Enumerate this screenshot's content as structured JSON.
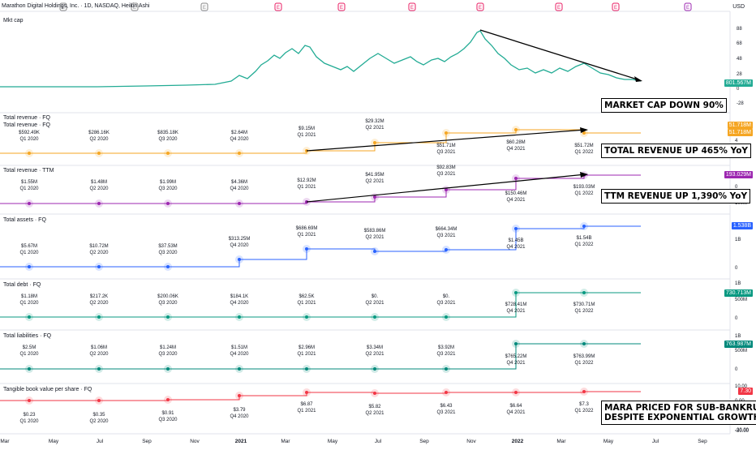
{
  "header": {
    "title": "Marathon Digital Holdings, Inc. · 1D, NASDAQ, Heikin Ashi",
    "currency": "USD",
    "events": [
      {
        "x": 78,
        "label": "E",
        "color": "#888888"
      },
      {
        "x": 166,
        "label": "E",
        "color": "#888888"
      },
      {
        "x": 252,
        "label": "E",
        "color": "#888888"
      },
      {
        "x": 343,
        "label": "E",
        "color": "#e91e63"
      },
      {
        "x": 421,
        "label": "E",
        "color": "#e91e63"
      },
      {
        "x": 508,
        "label": "E",
        "color": "#e91e63"
      },
      {
        "x": 592,
        "label": "E",
        "color": "#e91e63"
      },
      {
        "x": 689,
        "label": "E",
        "color": "#e91e63"
      },
      {
        "x": 759,
        "label": "E",
        "color": "#e91e63"
      },
      {
        "x": 848,
        "label": "E",
        "color": "#9c27b0"
      }
    ]
  },
  "x_axis": [
    "Mar",
    "May",
    "Jul",
    "Sep",
    "Nov",
    "2021",
    "Mar",
    "May",
    "Jul",
    "Sep",
    "Nov",
    "2022",
    "Mar",
    "May",
    "Jul",
    "Sep"
  ],
  "panes": {
    "mktcap": {
      "title": "Mkt cap",
      "axis": [
        "88",
        "68",
        "48",
        "28",
        "0",
        "-28"
      ],
      "last_value": "801.567M",
      "color": "#22ab94",
      "annotation": "MARKET CAP DOWN 90%"
    },
    "rev_fq": {
      "titles": [
        "Total revenue · FQ",
        "Total revenue · FQ"
      ],
      "points": [
        {
          "value": "$592.49K",
          "period": "Q1 2020"
        },
        {
          "value": "$286.16K",
          "period": "Q2 2020"
        },
        {
          "value": "$835.18K",
          "period": "Q3 2020"
        },
        {
          "value": "$2.64M",
          "period": "Q4 2020"
        },
        {
          "value": "$9.15M",
          "period": "Q1 2021"
        },
        {
          "value": "$29.32M",
          "period": "Q2 2021"
        },
        {
          "value": "$51.71M",
          "period": "Q3 2021"
        },
        {
          "value": "$60.28M",
          "period": "Q4 2021"
        },
        {
          "value": "$51.72M",
          "period": "Q1 2022"
        }
      ],
      "axis": [
        "0",
        "4"
      ],
      "tags": [
        "51.718M",
        "51.718M"
      ],
      "color": "#f5a623",
      "annotation": "TOTAL REVENUE UP 465% YoY"
    },
    "rev_ttm": {
      "title": "Total revenue · TTM",
      "points": [
        {
          "value": "$1.55M",
          "period": "Q1 2020"
        },
        {
          "value": "$1.48M",
          "period": "Q2 2020"
        },
        {
          "value": "$1.99M",
          "period": "Q3 2020"
        },
        {
          "value": "$4.36M",
          "period": "Q4 2020"
        },
        {
          "value": "$12.92M",
          "period": "Q1 2021"
        },
        {
          "value": "$41.95M",
          "period": "Q2 2021"
        },
        {
          "value": "$92.83M",
          "period": "Q3 2021"
        },
        {
          "value": "$150.46M",
          "period": "Q4 2021"
        },
        {
          "value": "$193.03M",
          "period": "Q1 2022"
        }
      ],
      "axis": [
        "100M",
        "0"
      ],
      "tag": "193.029M",
      "color": "#9c27b0",
      "annotation": "TTM REVENUE UP 1,390% YoY"
    },
    "assets": {
      "title": "Total assets · FQ",
      "points": [
        {
          "value": "$5.67M",
          "period": "Q1 2020"
        },
        {
          "value": "$10.72M",
          "period": "Q2 2020"
        },
        {
          "value": "$37.53M",
          "period": "Q3 2020"
        },
        {
          "value": "$313.25M",
          "period": "Q4 2020"
        },
        {
          "value": "$686.69M",
          "period": "Q1 2021"
        },
        {
          "value": "$583.86M",
          "period": "Q2 2021"
        },
        {
          "value": "$664.34M",
          "period": "Q3 2021"
        },
        {
          "value": "$1.45B",
          "period": "Q4 2021"
        },
        {
          "value": "$1.54B",
          "period": "Q1 2022"
        }
      ],
      "axis": [
        "1B",
        "0"
      ],
      "tag": "1.538B",
      "color": "#2962ff"
    },
    "debt": {
      "title": "Total debt · FQ",
      "points": [
        {
          "value": "$1.18M",
          "period": "Q1 2020"
        },
        {
          "value": "$217.2K",
          "period": "Q2 2020"
        },
        {
          "value": "$200.06K",
          "period": "Q3 2020"
        },
        {
          "value": "$184.1K",
          "period": "Q4 2020"
        },
        {
          "value": "$62.5K",
          "period": "Q1 2021"
        },
        {
          "value": "$0.",
          "period": "Q2 2021"
        },
        {
          "value": "$0.",
          "period": "Q3 2021"
        },
        {
          "value": "$728.41M",
          "period": "Q4 2021"
        },
        {
          "value": "$730.71M",
          "period": "Q1 2022"
        }
      ],
      "axis": [
        "1B",
        "500M",
        "0"
      ],
      "tag": "730.713M",
      "color": "#089981"
    },
    "liab": {
      "title": "Total liabilities · FQ",
      "points": [
        {
          "value": "$2.5M",
          "period": "Q1 2020"
        },
        {
          "value": "$1.06M",
          "period": "Q2 2020"
        },
        {
          "value": "$1.24M",
          "period": "Q3 2020"
        },
        {
          "value": "$1.51M",
          "period": "Q4 2020"
        },
        {
          "value": "$2.96M",
          "period": "Q1 2021"
        },
        {
          "value": "$3.34M",
          "period": "Q2 2021"
        },
        {
          "value": "$3.92M",
          "period": "Q3 2021"
        },
        {
          "value": "$765.22M",
          "period": "Q4 2021"
        },
        {
          "value": "$763.99M",
          "period": "Q1 2022"
        }
      ],
      "axis": [
        "1B",
        "500M",
        "0"
      ],
      "tag": "763.987M",
      "color": "#00897b"
    },
    "tbv": {
      "title": "Tangible book value per share · FQ",
      "points": [
        {
          "value": "$0.23",
          "period": "Q1 2020"
        },
        {
          "value": "$0.35",
          "period": "Q2 2020"
        },
        {
          "value": "$0.91",
          "period": "Q3 2020"
        },
        {
          "value": "$3.79",
          "period": "Q4 2020"
        },
        {
          "value": "$6.87",
          "period": "Q1 2021"
        },
        {
          "value": "$5.82",
          "period": "Q2 2021"
        },
        {
          "value": "$6.43",
          "period": "Q3 2021"
        },
        {
          "value": "$6.64",
          "period": "Q4 2021"
        },
        {
          "value": "$7.3",
          "period": "Q1 2022"
        }
      ],
      "axis": [
        "10.00",
        "0.00",
        "-10.00",
        "-20.00",
        "-30.00"
      ],
      "tag": "7.30",
      "color": "#f23645",
      "annotation_lines": [
        "MARA PRICED FOR SUB-BANKRUPTCY",
        "DESPITE EXPONENTIAL GROWTH"
      ]
    }
  }
}
